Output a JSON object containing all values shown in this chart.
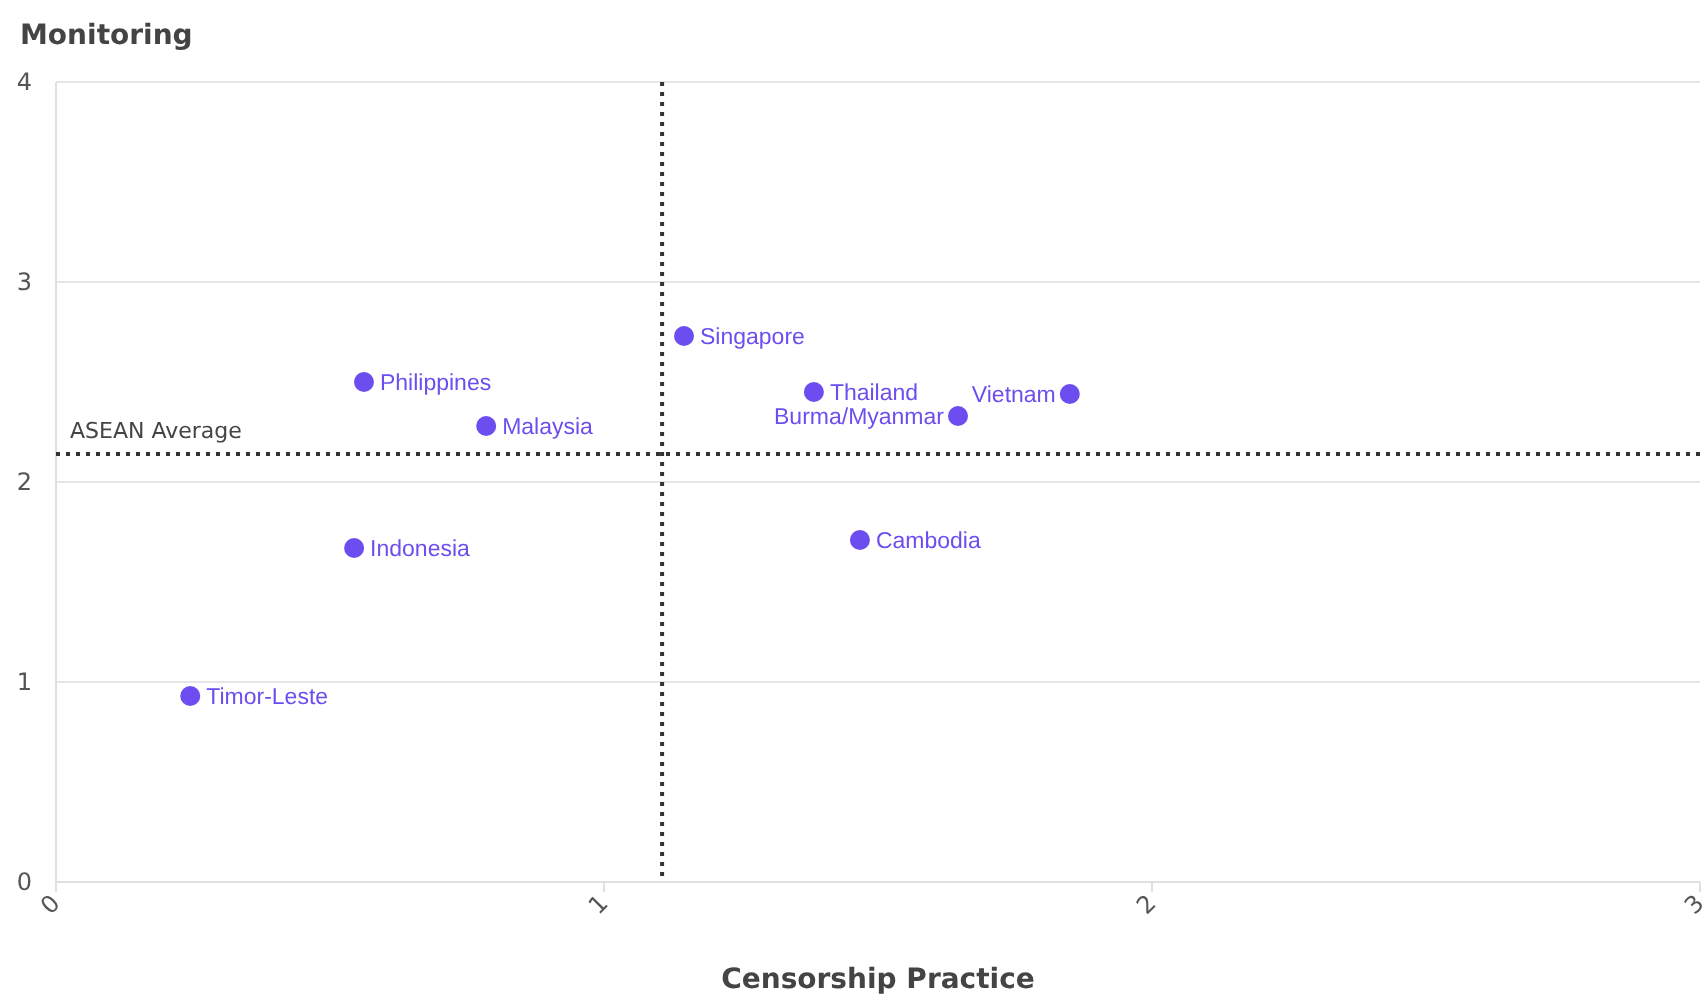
{
  "chart_data": {
    "type": "scatter",
    "xlabel": "Censorship Practice",
    "ylabel": "Monitoring",
    "xlim": [
      0,
      3
    ],
    "xticks": [
      0,
      1,
      2,
      3
    ],
    "ylim": [
      0,
      4
    ],
    "yticks": [
      0,
      1,
      2,
      3,
      4
    ],
    "grid": "y",
    "marker": "circle",
    "series": [
      {
        "name": "Timor-Leste",
        "color": "#6c4ef0",
        "x": [
          0.245
        ],
        "values": [
          0.93
        ]
      },
      {
        "name": "Indonesia",
        "color": "#6c4ef0",
        "x": [
          0.544
        ],
        "values": [
          1.67
        ]
      },
      {
        "name": "Philippines",
        "color": "#6c4ef0",
        "x": [
          0.562
        ],
        "values": [
          2.5
        ]
      },
      {
        "name": "Malaysia",
        "color": "#6c4ef0",
        "x": [
          0.785
        ],
        "values": [
          2.28
        ]
      },
      {
        "name": "Singapore",
        "color": "#6c4ef0",
        "x": [
          1.146
        ],
        "values": [
          2.73
        ]
      },
      {
        "name": "Thailand",
        "color": "#6c4ef0",
        "x": [
          1.383
        ],
        "values": [
          2.45
        ]
      },
      {
        "name": "Burma/Myanmar",
        "color": "#6c4ef0",
        "x": [
          1.646
        ],
        "values": [
          2.33
        ]
      },
      {
        "name": "Vietnam",
        "color": "#6c4ef0",
        "x": [
          1.85
        ],
        "values": [
          2.44
        ]
      },
      {
        "name": "Cambodia",
        "color": "#6c4ef0",
        "x": [
          1.467
        ],
        "values": [
          1.71
        ]
      }
    ],
    "ref_lines": [
      {
        "axis": "y",
        "value": 2.14,
        "label": "ASEAN Average",
        "line_style": "dotted"
      },
      {
        "axis": "x",
        "value": 1.106,
        "label": null,
        "line_style": "dotted"
      }
    ]
  }
}
